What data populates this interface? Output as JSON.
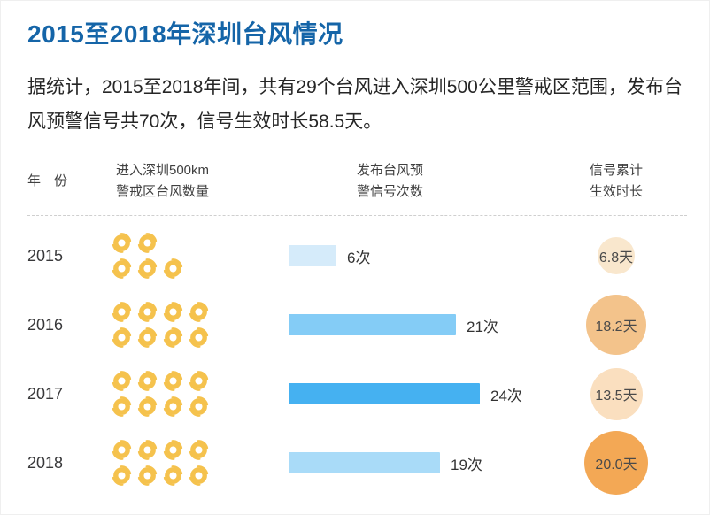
{
  "page": {
    "title": "2015至2018年深圳台风情况",
    "description": "据统计，2015至2018年间，共有29个台风进入深圳500公里警戒区范围，发布台风预警信号共70次，信号生效时长58.5天。"
  },
  "table": {
    "headers": {
      "year": "年　份",
      "typhoons_line1": "进入深圳500km",
      "typhoons_line2": "警戒区台风数量",
      "warnings_line1": "发布台风预",
      "warnings_line2": "警信号次数",
      "duration_line1": "信号累计",
      "duration_line2": "生效时长"
    },
    "rows": [
      {
        "year": "2015",
        "typhoon_count": 5,
        "warning_count": 6,
        "warning_label": "6次",
        "duration_days": 6.8,
        "duration_label": "6.8天",
        "bar_color": "#d5ebfa",
        "bubble_color": "#f9e7cd"
      },
      {
        "year": "2016",
        "typhoon_count": 8,
        "warning_count": 21,
        "warning_label": "21次",
        "duration_days": 18.2,
        "duration_label": "18.2天",
        "bar_color": "#84ccf6",
        "bubble_color": "#f3c38b"
      },
      {
        "year": "2017",
        "typhoon_count": 8,
        "warning_count": 24,
        "warning_label": "24次",
        "duration_days": 13.5,
        "duration_label": "13.5天",
        "bar_color": "#45b1f1",
        "bubble_color": "#fadfbf"
      },
      {
        "year": "2018",
        "typhoon_count": 8,
        "warning_count": 19,
        "warning_label": "19次",
        "duration_days": 20.0,
        "duration_label": "20.0天",
        "bar_color": "#a9dbf8",
        "bubble_color": "#f3a855"
      }
    ]
  },
  "chart_data": {
    "type": "table",
    "title": "2015至2018年深圳台风情况",
    "categories": [
      "2015",
      "2016",
      "2017",
      "2018"
    ],
    "series": [
      {
        "name": "进入深圳500km警戒区台风数量",
        "unit": "个",
        "values": [
          5,
          8,
          8,
          8
        ],
        "representation": "pictogram-typhoon-icons"
      },
      {
        "name": "发布台风预警信号次数",
        "unit": "次",
        "values": [
          6,
          21,
          24,
          19
        ],
        "representation": "bar"
      },
      {
        "name": "信号累计生效时长",
        "unit": "天",
        "values": [
          6.8,
          18.2,
          13.5,
          20.0
        ],
        "representation": "bubble"
      }
    ],
    "totals": {
      "typhoons": 29,
      "warning_signals": 70,
      "duration_days": 58.5
    },
    "legend_position": "none",
    "grid": false
  },
  "colors": {
    "title_blue": "#1565a8",
    "body_text": "#262626",
    "header_text": "#404040",
    "divider": "#cfcfcf",
    "typhoon_icon_yellow": "#f5c24d",
    "bar_blues": [
      "#d5ebfa",
      "#84ccf6",
      "#45b1f1",
      "#a9dbf8"
    ],
    "bubble_oranges": [
      "#f9e7cd",
      "#f3c38b",
      "#fadfbf",
      "#f3a855"
    ]
  },
  "icons": {
    "typhoon": "typhoon-swirl-icon"
  }
}
